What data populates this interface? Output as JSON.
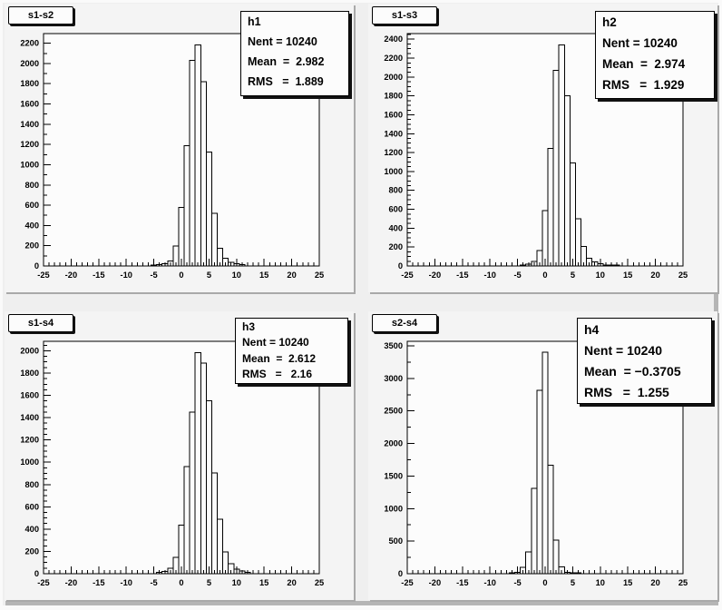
{
  "colors": {
    "canvas_bg": "#efefef",
    "pad_bg": "#f4f4f4",
    "frame_bg": "#fcfcfc",
    "bar_fill": "#fcfcfc",
    "line": "#000000",
    "bevel_shadow": "#b5b5b5",
    "bevel_highlight": "#fafafa",
    "pad_shadow": "#a9a9a9"
  },
  "pads": [
    {
      "title": "s1-s2",
      "stats_lines": [
        "h1",
        "Nent = 10240",
        "Mean  =  2.982",
        "RMS   =  1.889"
      ]
    },
    {
      "title": "s1-s3",
      "stats_lines": [
        "h2",
        "Nent = 10240",
        "Mean  =  2.974",
        "RMS   =  1.929"
      ]
    },
    {
      "title": "s1-s4",
      "stats_lines": [
        "h3",
        "Nent = 10240",
        "Mean  =  2.612",
        "RMS   =   2.16"
      ]
    },
    {
      "title": "s2-s4",
      "stats_lines": [
        "h4",
        "Nent = 10240",
        "Mean  = −0.3705",
        "RMS   =  1.255"
      ]
    }
  ],
  "chart_data": [
    {
      "type": "bar",
      "histogram": "h1",
      "pad_title": "s1-s2",
      "entries": 10240,
      "mean": 2.982,
      "rms": 1.889,
      "bin_width": 1,
      "bin_centers": [
        -5,
        -4,
        -3,
        -2,
        -1,
        0,
        1,
        2,
        3,
        4,
        5,
        6,
        7,
        8,
        9,
        10,
        11
      ],
      "values": [
        8,
        12,
        22,
        48,
        198,
        580,
        1190,
        2030,
        2185,
        1820,
        1125,
        520,
        175,
        75,
        36,
        24,
        12
      ],
      "xlim": [
        -25,
        25
      ],
      "ylim": [
        0,
        2295
      ],
      "x_major_step": 5,
      "x_minor_step": 1,
      "y_major_step": 200,
      "y_minor_step": 100,
      "x_tick_labels": [
        "-25",
        "-20",
        "-15",
        "-10",
        "-5",
        "0",
        "5",
        "10",
        "15",
        "20",
        "25"
      ],
      "y_tick_labels": [
        "0",
        "200",
        "400",
        "600",
        "800",
        "1000",
        "1200",
        "1400",
        "1600",
        "1800",
        "2000",
        "2200"
      ],
      "grid": false,
      "legend": false
    },
    {
      "type": "bar",
      "histogram": "h2",
      "pad_title": "s1-s3",
      "entries": 10240,
      "mean": 2.974,
      "rms": 1.929,
      "bin_width": 1,
      "bin_centers": [
        -4,
        -3,
        -2,
        -1,
        0,
        1,
        2,
        3,
        4,
        5,
        6,
        7,
        8,
        9,
        10,
        11,
        12,
        13
      ],
      "values": [
        10,
        20,
        50,
        165,
        585,
        1245,
        2070,
        2340,
        1800,
        1090,
        500,
        205,
        80,
        45,
        22,
        12,
        6,
        8
      ],
      "xlim": [
        -25,
        25
      ],
      "ylim": [
        0,
        2460
      ],
      "x_major_step": 5,
      "x_minor_step": 1,
      "y_major_step": 200,
      "y_minor_step": 50,
      "x_tick_labels": [
        "-25",
        "-20",
        "-15",
        "-10",
        "-5",
        "0",
        "5",
        "10",
        "15",
        "20",
        "25"
      ],
      "y_tick_labels": [
        "0",
        "200",
        "400",
        "600",
        "800",
        "1000",
        "1200",
        "1400",
        "1600",
        "1800",
        "2000",
        "2200",
        "2400"
      ],
      "grid": false,
      "legend": false
    },
    {
      "type": "bar",
      "histogram": "h3",
      "pad_title": "s1-s4",
      "entries": 10240,
      "mean": 2.612,
      "rms": 2.16,
      "bin_width": 1,
      "bin_centers": [
        -4,
        -3,
        -2,
        -1,
        0,
        1,
        2,
        3,
        4,
        5,
        6,
        7,
        8,
        9,
        10,
        11,
        12
      ],
      "values": [
        12,
        22,
        48,
        145,
        437,
        960,
        1450,
        1985,
        1890,
        1550,
        905,
        490,
        195,
        90,
        42,
        25,
        12
      ],
      "xlim": [
        -25,
        25
      ],
      "ylim": [
        0,
        2085
      ],
      "x_major_step": 5,
      "x_minor_step": 1,
      "y_major_step": 200,
      "y_minor_step": 50,
      "x_tick_labels": [
        "-25",
        "-20",
        "-15",
        "-10",
        "-5",
        "0",
        "5",
        "10",
        "15",
        "20",
        "25"
      ],
      "y_tick_labels": [
        "0",
        "200",
        "400",
        "600",
        "800",
        "1000",
        "1200",
        "1400",
        "1600",
        "1800",
        "2000"
      ],
      "grid": false,
      "legend": false
    },
    {
      "type": "bar",
      "histogram": "h4",
      "pad_title": "s2-s4",
      "entries": 10240,
      "mean": -0.3705,
      "rms": 1.255,
      "bin_width": 1,
      "bin_centers": [
        -6,
        -5,
        -4,
        -3,
        -2,
        -1,
        0,
        1,
        2,
        3,
        4,
        5,
        6
      ],
      "values": [
        6,
        24,
        95,
        335,
        1310,
        2820,
        3400,
        1665,
        515,
        105,
        24,
        6,
        8
      ],
      "xlim": [
        -25,
        25
      ],
      "ylim": [
        0,
        3570
      ],
      "x_major_step": 5,
      "x_minor_step": 1,
      "y_major_step": 500,
      "y_minor_step": 250,
      "x_tick_labels": [
        "-25",
        "-20",
        "-15",
        "-10",
        "-5",
        "0",
        "5",
        "10",
        "15",
        "20",
        "25"
      ],
      "y_tick_labels": [
        "0",
        "500",
        "1000",
        "1500",
        "2000",
        "2500",
        "3000",
        "3500"
      ],
      "grid": false,
      "legend": false
    }
  ]
}
